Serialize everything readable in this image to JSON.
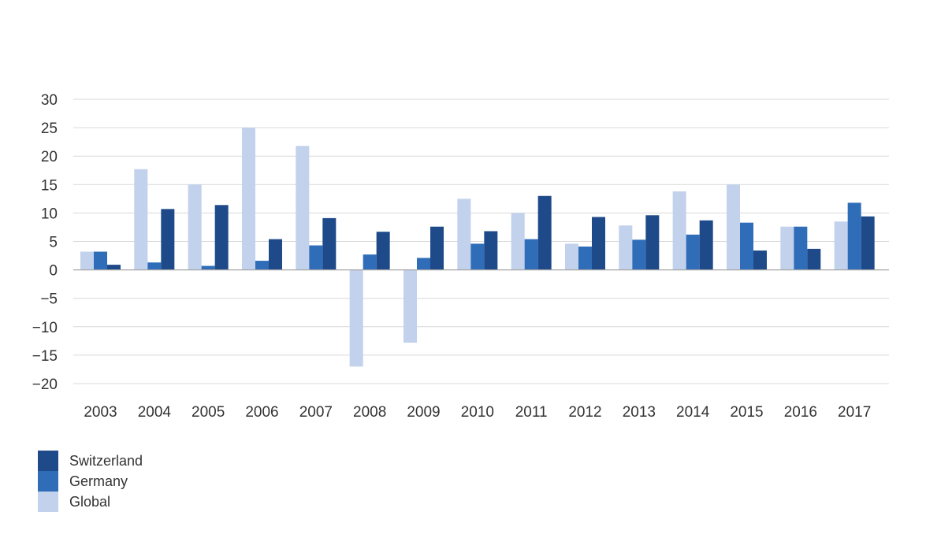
{
  "chart_data": {
    "type": "bar",
    "title": "",
    "xlabel": "",
    "ylabel": "",
    "ylim": [
      -20,
      30
    ],
    "yticks": [
      30,
      25,
      20,
      15,
      10,
      5,
      0,
      -5,
      -10,
      -15,
      -20
    ],
    "ytick_labels": [
      "30",
      "25",
      "20",
      "15",
      "10",
      "5",
      "0",
      "−5",
      "−10",
      "−15",
      "−20"
    ],
    "grid": true,
    "legend_position": "bottom-left",
    "categories": [
      "2003",
      "2004",
      "2005",
      "2006",
      "2007",
      "2008",
      "2009",
      "2010",
      "2011",
      "2012",
      "2013",
      "2014",
      "2015",
      "2016",
      "2017"
    ],
    "series": [
      {
        "name": "Global",
        "color": "#c2d1ec",
        "values": [
          3.2,
          17.7,
          15.0,
          25.0,
          21.8,
          -17.0,
          -12.8,
          12.5,
          10.0,
          4.6,
          7.8,
          13.8,
          15.0,
          7.6,
          8.5
        ]
      },
      {
        "name": "Germany",
        "color": "#2f6db8",
        "values": [
          3.2,
          1.3,
          0.7,
          1.6,
          4.3,
          2.7,
          2.1,
          4.6,
          5.4,
          4.1,
          5.3,
          6.2,
          8.3,
          7.6,
          11.8
        ]
      },
      {
        "name": "Switzerland",
        "color": "#1e4a8a",
        "values": [
          0.9,
          10.7,
          11.4,
          5.4,
          9.1,
          6.7,
          7.6,
          6.8,
          13.0,
          9.3,
          9.6,
          8.7,
          3.4,
          3.7,
          9.4
        ]
      }
    ],
    "legend_order": [
      "Switzerland",
      "Germany",
      "Global"
    ]
  },
  "colors": {
    "grid": "#d9d9d9",
    "zero_line": "#a6a6a6",
    "text": "#333333"
  }
}
